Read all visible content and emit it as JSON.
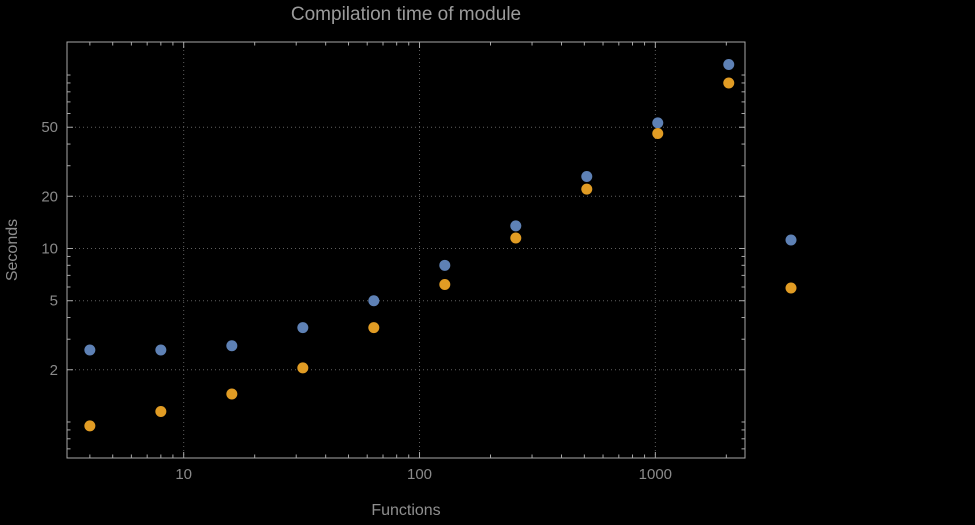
{
  "chart_data": {
    "type": "scatter",
    "title": "Compilation time of module",
    "xlabel": "Functions",
    "ylabel": "Seconds",
    "x_scale": "log",
    "y_scale": "log",
    "xlim": [
      3.2,
      2400
    ],
    "ylim": [
      0.62,
      155
    ],
    "x_ticks": [
      10,
      100,
      1000
    ],
    "x_tick_labels": [
      "10",
      "100",
      "1000"
    ],
    "y_ticks": [
      2,
      5,
      10,
      20,
      50
    ],
    "y_tick_labels": [
      "2",
      "5",
      "10",
      "20",
      "50"
    ],
    "grid": "dotted lines at labeled ticks only, framed plot with minor log ticks on all edges",
    "x": [
      4,
      8,
      16,
      32,
      64,
      128,
      256,
      512,
      1024,
      2048
    ],
    "series": [
      {
        "name": "series-1-blue",
        "color": "#5e81b5",
        "values": [
          2.6,
          2.6,
          2.75,
          3.5,
          5.0,
          8.0,
          13.5,
          26,
          53,
          115
        ]
      },
      {
        "name": "series-2-orange",
        "color": "#e19c24",
        "values": [
          0.95,
          1.15,
          1.45,
          2.05,
          3.5,
          6.2,
          11.5,
          22,
          46,
          90
        ]
      }
    ],
    "legend": {
      "position": "outside-right",
      "markers": [
        {
          "color": "#5e81b5"
        },
        {
          "color": "#e19c24"
        }
      ]
    }
  },
  "colors": {
    "background": "#000000",
    "frame": "#a9a9a9",
    "grid": "#5f5f5f",
    "tick_text": "#8a8a8a",
    "title_text": "#9b9b9b",
    "label_text": "#8f8f8f"
  }
}
